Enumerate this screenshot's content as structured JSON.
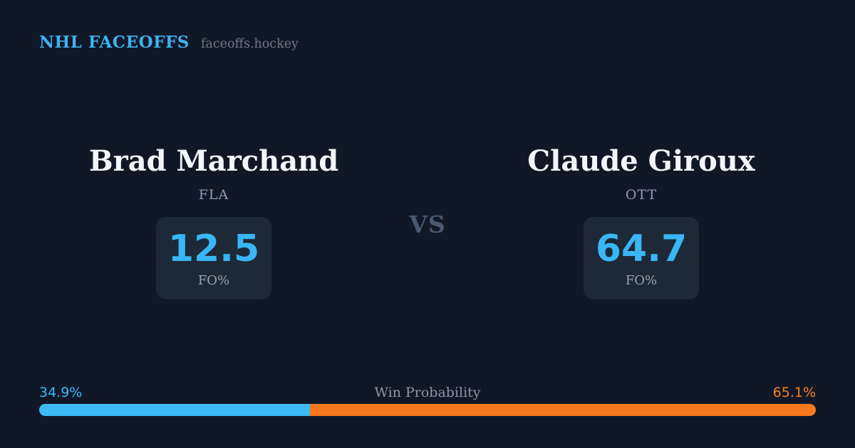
{
  "header": {
    "brand": "NHL FACEOFFS",
    "tagline": "faceoffs.hockey"
  },
  "matchup": {
    "vs_label": "VS",
    "players": [
      {
        "name": "Brad Marchand",
        "team": "FLA",
        "stat_value": "12.5",
        "stat_label": "FO%",
        "win_probability_label": "34.9%",
        "win_probability_pct": 34.9,
        "color": "#3cbaf4"
      },
      {
        "name": "Claude Giroux",
        "team": "OTT",
        "stat_value": "64.7",
        "stat_label": "FO%",
        "win_probability_label": "65.1%",
        "win_probability_pct": 65.1,
        "color": "#f8791d"
      }
    ]
  },
  "win_probability": {
    "title": "Win Probability",
    "left_label": "34.9%",
    "right_label": "65.1%",
    "left_pct": 34.9,
    "right_pct": 65.1
  },
  "colors": {
    "background": "#101827",
    "stat_box": "#1e2937",
    "brand_blue": "#3fb0ee",
    "stat_blue": "#38b6f5",
    "bar_blue": "#3cbaf4",
    "bar_orange": "#f8791d",
    "name_white": "#f2f6fa",
    "muted_slate": "#8c9cb2"
  },
  "chart_data": {
    "type": "bar",
    "title": "Win Probability",
    "categories": [
      "Brad Marchand (FLA)",
      "Claude Giroux (OTT)"
    ],
    "series": [
      {
        "name": "FO%",
        "values": [
          12.5,
          64.7
        ]
      },
      {
        "name": "Win Probability %",
        "values": [
          34.9,
          65.1
        ]
      }
    ],
    "xlabel": "",
    "ylabel": "",
    "ylim": [
      0,
      100
    ],
    "legend_position": "none",
    "colors": [
      "#3cbaf4",
      "#f8791d"
    ]
  }
}
